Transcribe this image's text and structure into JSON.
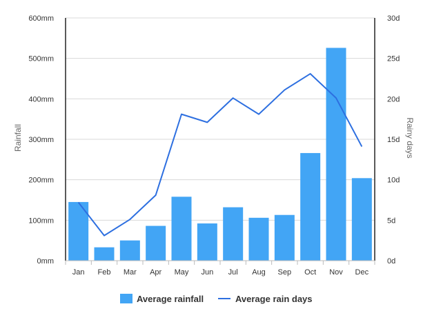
{
  "chart_data": {
    "type": "bar",
    "categories": [
      "Jan",
      "Feb",
      "Mar",
      "Apr",
      "May",
      "Jun",
      "Jul",
      "Aug",
      "Sep",
      "Oct",
      "Nov",
      "Dec"
    ],
    "series": [
      {
        "name": "Average rainfall",
        "type": "bar",
        "axis": "left",
        "color": "#42a5f5",
        "values": [
          145,
          33,
          50,
          86,
          158,
          92,
          132,
          106,
          113,
          266,
          526,
          204
        ]
      },
      {
        "name": "Average rain days",
        "type": "line",
        "axis": "right",
        "color": "#2d6fe0",
        "values": [
          7.2,
          3.1,
          5.1,
          8.1,
          18.1,
          17.1,
          20.1,
          18.1,
          21.1,
          23.1,
          20.1,
          14.1
        ]
      }
    ],
    "y_left": {
      "label": "Rainfall",
      "ylim": [
        0,
        600
      ],
      "ticks": [
        "0mm",
        "100mm",
        "200mm",
        "300mm",
        "400mm",
        "500mm",
        "600mm"
      ]
    },
    "y_right": {
      "label": "Rainy days",
      "ylim": [
        0,
        30
      ],
      "ticks": [
        "0d",
        "5d",
        "10d",
        "15d",
        "20d",
        "25d",
        "30d"
      ]
    },
    "grid": true,
    "legend_position": "bottom"
  }
}
